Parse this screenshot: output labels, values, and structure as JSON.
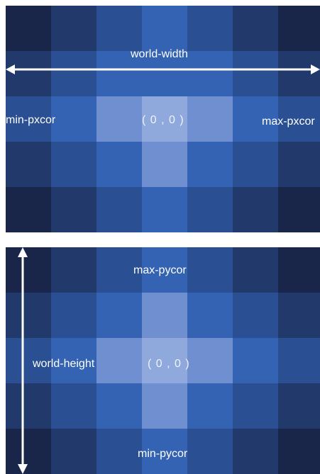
{
  "colors": {
    "level0": "#19264a",
    "level1": "#21396b",
    "level2": "#2a4f92",
    "level3": "#3363b2",
    "level4": "#6f8fd0",
    "level5": "#8fa9dc",
    "arrow": "#ffffff"
  },
  "width_diagram": {
    "dimension_label": "world-width",
    "min_label": "min-pxcor",
    "max_label": "max-pxcor",
    "origin_label": "( 0 , 0 )",
    "cell_levels": [
      [
        0,
        1,
        2,
        3,
        2,
        1,
        0
      ],
      [
        1,
        2,
        3,
        3,
        3,
        2,
        1
      ],
      [
        2,
        3,
        4,
        5,
        4,
        3,
        2
      ],
      [
        1,
        2,
        3,
        4,
        3,
        2,
        1
      ],
      [
        0,
        1,
        2,
        3,
        2,
        1,
        0
      ]
    ]
  },
  "height_diagram": {
    "dimension_label": "world-height",
    "min_label": "min-pycor",
    "max_label": "max-pycor",
    "origin_label": "( 0 , 0 )",
    "cell_levels": [
      [
        0,
        1,
        2,
        3,
        2,
        1,
        0
      ],
      [
        1,
        2,
        3,
        4,
        3,
        2,
        1
      ],
      [
        2,
        3,
        4,
        5,
        4,
        3,
        2
      ],
      [
        1,
        2,
        3,
        4,
        3,
        2,
        1
      ],
      [
        0,
        1,
        2,
        3,
        2,
        1,
        0
      ]
    ]
  }
}
